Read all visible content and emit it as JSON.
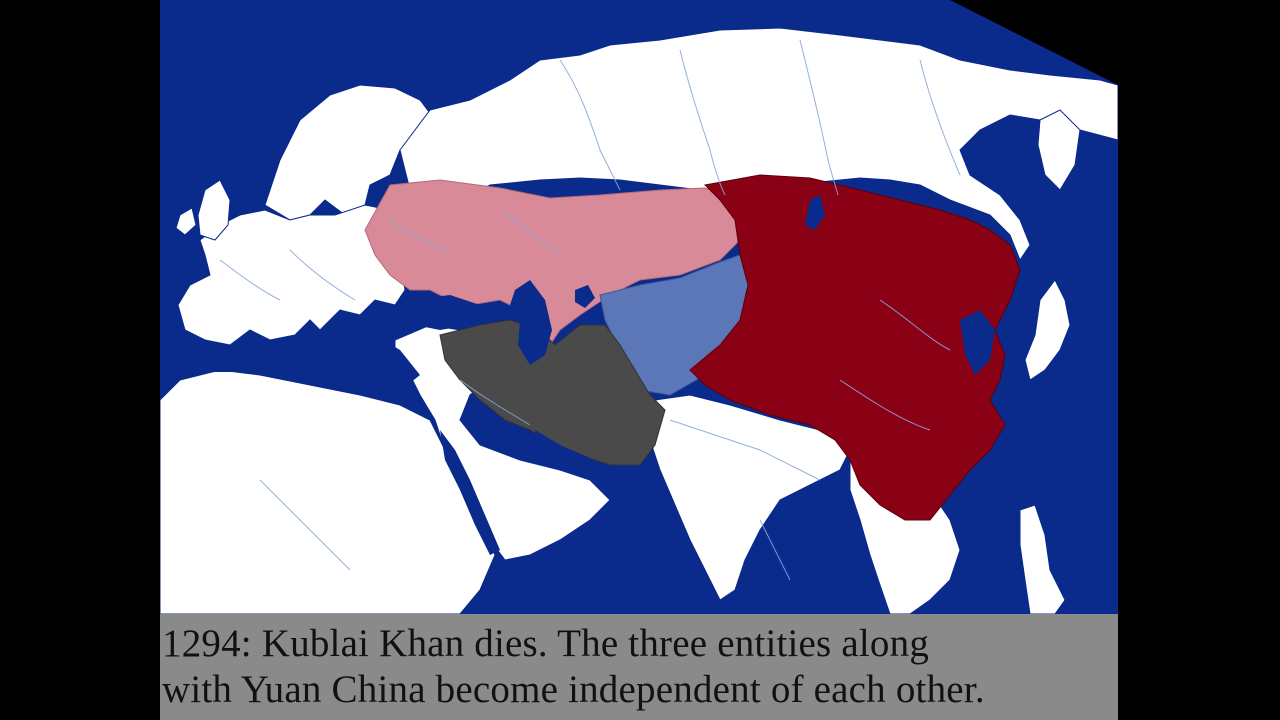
{
  "caption": {
    "line1": "1294: Kublai Khan dies. The three entities along",
    "line2": "with Yuan China become independent of each other."
  },
  "colors": {
    "background": "#000000",
    "sea": "#0a2a8c",
    "land": "#ffffff",
    "river": "#8aa6d8",
    "golden_horde": "#d98a98",
    "chagatai_khanate": "#5b77b8",
    "ilkhanate": "#4a4a4a",
    "yuan_dynasty": "#8a0015",
    "caption_bg": "#8a8a8a",
    "caption_text": "#111111"
  }
}
